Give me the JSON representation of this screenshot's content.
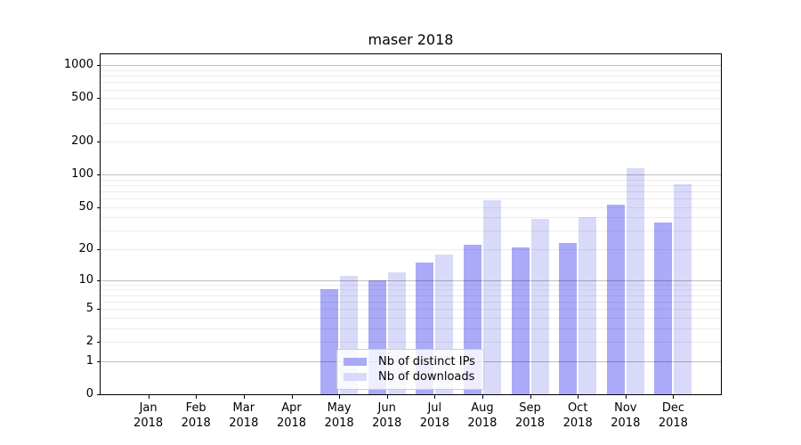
{
  "title": "maser 2018",
  "chart_data": {
    "type": "bar",
    "title": "maser 2018",
    "categories": [
      "Jan",
      "Feb",
      "Mar",
      "Apr",
      "May",
      "Jun",
      "Jul",
      "Aug",
      "Sep",
      "Oct",
      "Nov",
      "Dec"
    ],
    "year_label": "2018",
    "series": [
      {
        "name": "Nb of distinct IPs",
        "color": "#aaaaf8",
        "values": [
          0,
          0,
          0,
          0,
          8,
          10,
          15,
          22,
          21,
          23,
          53,
          36
        ]
      },
      {
        "name": "Nb of downloads",
        "color": "#d9d9fa",
        "values": [
          0,
          0,
          0,
          0,
          11,
          12,
          18,
          58,
          39,
          40,
          115,
          81
        ]
      }
    ],
    "xlabel": "",
    "ylabel": "",
    "y_scale": "log10(1+v)",
    "y_ticks": [
      0,
      1,
      2,
      5,
      10,
      20,
      50,
      100,
      200,
      500,
      1000
    ],
    "y_tick_labels": [
      "0",
      "1",
      "2",
      "5",
      "10",
      "20",
      "50",
      "100",
      "200",
      "500",
      "1000"
    ],
    "ylim": [
      0,
      1260
    ],
    "grid": "major+minor, drawn above bars",
    "legend_position": "lower center"
  }
}
